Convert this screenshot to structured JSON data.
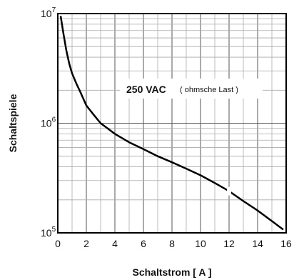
{
  "chart_data": {
    "type": "line",
    "xlabel": "Schaltstrom [ A ]",
    "ylabel": "Schaltspiele",
    "xlim": [
      0,
      16
    ],
    "ylim": [
      100000,
      10000000
    ],
    "yscale": "log",
    "grid": true,
    "x_ticks": [
      "0",
      "2",
      "4",
      "6",
      "8",
      "10",
      "12",
      "14",
      "16"
    ],
    "y_ticks": [
      {
        "base": "10",
        "exp": "7",
        "value": 10000000
      },
      {
        "base": "10",
        "exp": "6",
        "value": 1000000
      },
      {
        "base": "10",
        "exp": "5",
        "value": 100000
      }
    ],
    "annotation": {
      "main": "250 VAC",
      "sub": "( ohmsche Last )"
    },
    "series": [
      {
        "x": [
          0.2,
          0.4,
          0.6,
          0.8,
          1.0,
          1.3,
          1.6,
          2.0,
          2.5,
          3.0,
          4.0,
          5.0,
          6.0,
          7.0,
          8.0,
          9.0,
          10.0,
          11.0,
          12.0,
          13.0,
          14.0,
          15.0,
          15.8
        ],
        "y": [
          9500000,
          6500000,
          4600000,
          3500000,
          2850000,
          2300000,
          1900000,
          1450000,
          1200000,
          1000000,
          800000,
          670000,
          580000,
          500000,
          440000,
          385000,
          335000,
          285000,
          240000,
          195000,
          160000,
          128000,
          107000
        ]
      }
    ]
  }
}
